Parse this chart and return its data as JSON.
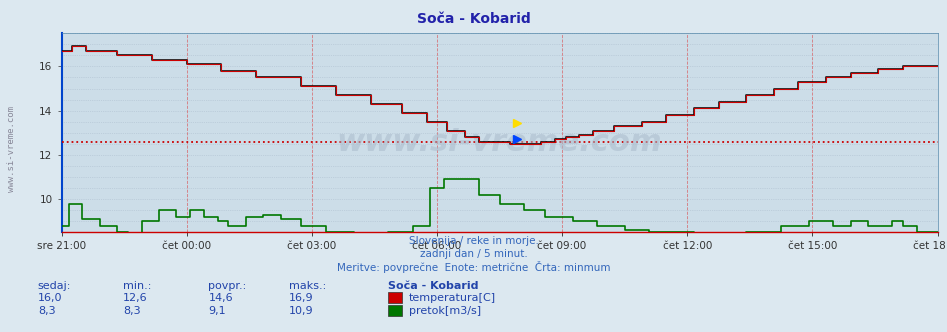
{
  "title": "Soča - Kobarid",
  "title_color": "#2222aa",
  "bg_color": "#dce8f0",
  "plot_bg_color": "#ccdde8",
  "grid_color_h": "#aabbcc",
  "grid_color_v": "#dd3333",
  "x_tick_labels": [
    "sre 21:00",
    "čet 00:00",
    "čet 03:00",
    "čet 06:00",
    "čet 09:00",
    "čet 12:00",
    "čet 15:00",
    "čet 18:00"
  ],
  "x_tick_positions": [
    0,
    36,
    72,
    108,
    144,
    180,
    216,
    252
  ],
  "total_points": 252,
  "y_ticks": [
    10,
    12,
    14,
    16
  ],
  "ylim": [
    8.5,
    17.5
  ],
  "temp_color": "#cc0000",
  "temp_color2": "#111111",
  "flow_color": "#007700",
  "avg_line_y": 12.6,
  "avg_line_color": "#cc0000",
  "watermark": "www.si-vreme.com",
  "subtitle1": "Slovenija / reke in morje.",
  "subtitle2": "zadnji dan / 5 minut.",
  "subtitle3": "Meritve: povprečne  Enote: metrične  Črta: minmum",
  "subtitle_color": "#3366bb",
  "label_sedaj": "sedaj:",
  "label_min": "min.:",
  "label_povpr": "povpr.:",
  "label_maks": "maks.:",
  "temp_sedaj": "16,0",
  "temp_min": "12,6",
  "temp_povpr": "14,6",
  "temp_maks": "16,9",
  "flow_sedaj": "8,3",
  "flow_min": "8,3",
  "flow_povpr": "9,1",
  "flow_maks": "10,9",
  "station_label": "Soča - Kobarid",
  "temp_label": "temperatura[C]",
  "flow_label": "pretok[m3/s]",
  "stats_color": "#2244aa",
  "left_label": "www.si-vreme.com"
}
